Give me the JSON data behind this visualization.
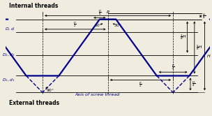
{
  "bg_color": "#f0ede0",
  "thread_color": "#00008B",
  "line_color": "#000000",
  "text_color": "#000000",
  "blue_text": "#000080",
  "title_internal": "Internal threads",
  "title_external": "External threads",
  "axis_label": "Axis of screw thread",
  "figsize": [
    3.04,
    1.66
  ],
  "dpi": 100,
  "xlim": [
    0,
    10
  ],
  "ylim": [
    0,
    11
  ]
}
